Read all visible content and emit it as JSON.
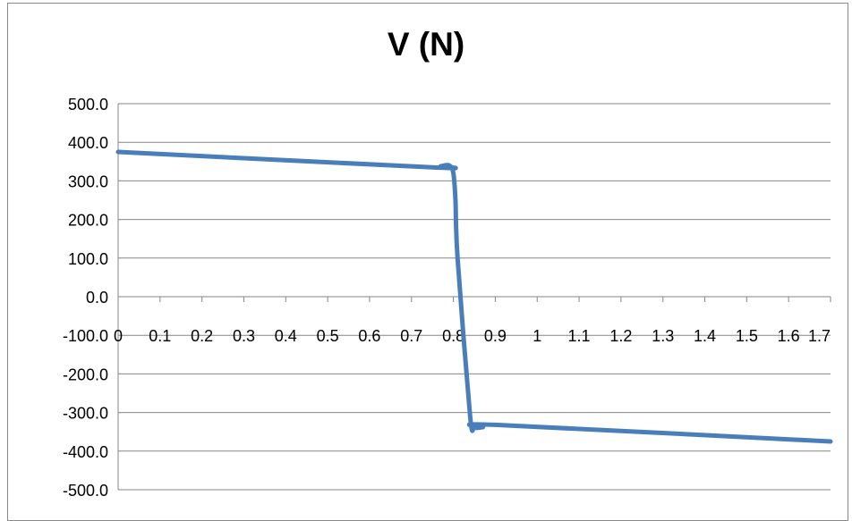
{
  "chart_data": {
    "type": "line",
    "title": "V (N)",
    "xlabel": "",
    "ylabel": "",
    "ylim": [
      -500,
      500
    ],
    "xlim": [
      0,
      1.7
    ],
    "y_ticks": [
      "500.0",
      "400.0",
      "300.0",
      "200.0",
      "100.0",
      "0.0",
      "-100.0",
      "-200.0",
      "-300.0",
      "-400.0",
      "-500.0"
    ],
    "y_tick_values": [
      500,
      400,
      300,
      200,
      100,
      0,
      -100,
      -200,
      -300,
      -400,
      -500
    ],
    "x_ticks": [
      "0",
      "0.1",
      "0.2",
      "0.3",
      "0.4",
      "0.5",
      "0.6",
      "0.7",
      "0.8",
      "0.9",
      "1",
      "1.1",
      "1.2",
      "1.3",
      "1.4",
      "1.5",
      "1.6",
      "1.7"
    ],
    "x_tick_values": [
      0,
      0.1,
      0.2,
      0.3,
      0.4,
      0.5,
      0.6,
      0.7,
      0.8,
      0.9,
      1.0,
      1.1,
      1.2,
      1.3,
      1.4,
      1.5,
      1.6,
      1.7
    ],
    "grid": true,
    "legend": "none",
    "series_color": "#4a7ebb",
    "series": [
      {
        "x": [
          0,
          0.75,
          0.77,
          0.79,
          0.8,
          0.805,
          0.81,
          0.84,
          0.85,
          0.87,
          0.9,
          1.7
        ],
        "values": [
          375,
          335,
          338,
          340,
          320,
          250,
          100,
          -310,
          -338,
          -338,
          -332,
          -375
        ]
      }
    ]
  }
}
